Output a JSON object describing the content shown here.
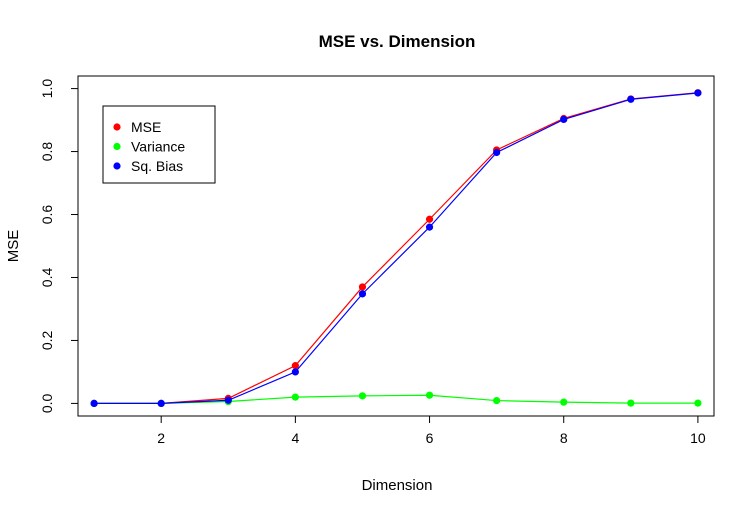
{
  "chart_data": {
    "type": "line",
    "title": "MSE vs. Dimension",
    "xlabel": "Dimension",
    "ylabel": "MSE",
    "xlim": [
      0.76,
      10.24
    ],
    "ylim": [
      -0.04,
      1.04
    ],
    "x_ticks": [
      2,
      4,
      6,
      8,
      10
    ],
    "y_ticks": [
      0.0,
      0.2,
      0.4,
      0.6,
      0.8,
      1.0
    ],
    "x_tick_labels": [
      "2",
      "4",
      "6",
      "8",
      "10"
    ],
    "y_tick_labels": [
      "0.0",
      "0.2",
      "0.4",
      "0.6",
      "0.8",
      "1.0"
    ],
    "grid": false,
    "legend_position": "top-left",
    "x": [
      1,
      2,
      3,
      4,
      5,
      6,
      7,
      8,
      9,
      10
    ],
    "series": [
      {
        "name": "MSE",
        "color": "#ff0000",
        "values": [
          0.0,
          0.0,
          0.016,
          0.12,
          0.37,
          0.585,
          0.805,
          0.905,
          0.967,
          0.987
        ]
      },
      {
        "name": "Variance",
        "color": "#00ff00",
        "values": [
          0.0,
          0.0,
          0.006,
          0.02,
          0.024,
          0.026,
          0.009,
          0.004,
          0.001,
          0.001
        ]
      },
      {
        "name": "Sq. Bias",
        "color": "#0000ff",
        "values": [
          0.0,
          0.0,
          0.01,
          0.1,
          0.348,
          0.56,
          0.797,
          0.902,
          0.966,
          0.986
        ]
      }
    ]
  }
}
